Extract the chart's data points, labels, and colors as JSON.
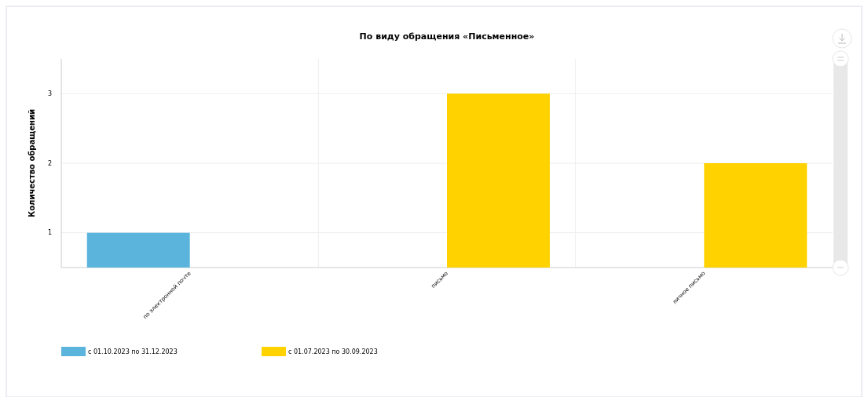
{
  "chart_data": {
    "type": "bar",
    "title": "По виду обращения «Письменное»",
    "ylabel": "Количество обращений",
    "categories": [
      "по электронной почте",
      "письмо",
      "личное письмо"
    ],
    "series": [
      {
        "name": "с 01.10.2023 по 31.12.2023",
        "color": "#5ab4dc",
        "values": [
          1,
          null,
          null
        ]
      },
      {
        "name": "с 01.07.2023 по 30.09.2023",
        "color": "#ffd200",
        "values": [
          null,
          3,
          2
        ]
      }
    ],
    "ylim": [
      0.5,
      3.5
    ],
    "yticks": [
      1,
      2,
      3
    ],
    "grid": true,
    "legend": "bottom"
  }
}
